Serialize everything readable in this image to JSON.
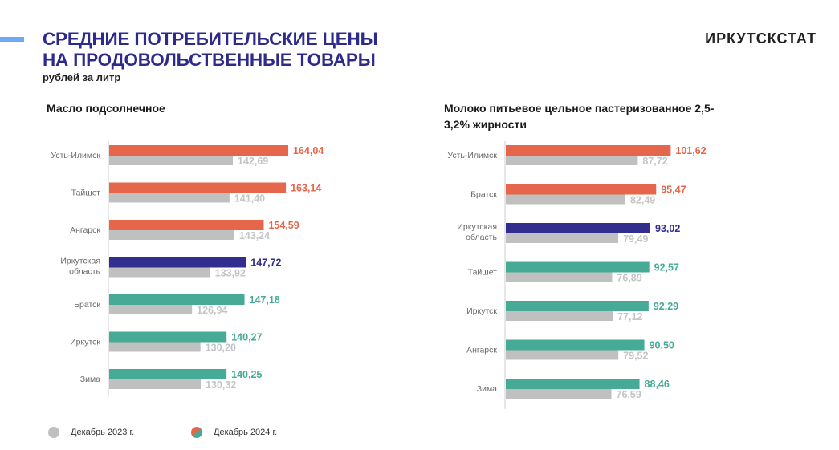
{
  "header": {
    "title_line1": "СРЕДНИЕ ПОТРЕБИТЕЛЬСКИЕ ЦЕНЫ",
    "title_line2": "НА ПРОДОВОЛЬСТВЕННЫЕ ТОВАРЫ",
    "subtitle": "рублей за литр",
    "brand": "ИРКУТСКСТАТ"
  },
  "colors": {
    "dec2023": "#c0c0c0",
    "above": "#e5664a",
    "region": "#332d8f",
    "below": "#46ab96"
  },
  "legend": {
    "dec2023": "Декабрь 2023 г.",
    "dec2024": "Декабрь 2024 г."
  },
  "chart_data": [
    {
      "type": "bar",
      "orientation": "horizontal",
      "title": "Масло подсолнечное",
      "xlabel": "",
      "ylabel": "",
      "xlim": [
        95,
        175
      ],
      "categories": [
        "Усть-Илимск",
        "Тайшет",
        "Ангарск",
        "Иркутская область",
        "Братск",
        "Иркутск",
        "Зима"
      ],
      "category_status": [
        "above",
        "above",
        "above",
        "region",
        "below",
        "below",
        "below"
      ],
      "series": [
        {
          "name": "Декабрь 2024 г.",
          "values": [
            164.04,
            163.14,
            154.59,
            147.72,
            147.18,
            140.27,
            140.25
          ],
          "labels": [
            "164,04",
            "163,14",
            "154,59",
            "147,72",
            "147,18",
            "140,27",
            "140,25"
          ]
        },
        {
          "name": "Декабрь 2023 г.",
          "values": [
            142.69,
            141.4,
            143.24,
            133.92,
            126.94,
            130.2,
            130.32
          ],
          "labels": [
            "142,69",
            "141,40",
            "143,24",
            "133,92",
            "126,94",
            "130,20",
            "130,32"
          ]
        }
      ],
      "legend": "bottom-left"
    },
    {
      "type": "bar",
      "orientation": "horizontal",
      "title": "Молоко питьевое цельное пастеризованное 2,5-3,2% жирности",
      "xlabel": "",
      "ylabel": "",
      "xlim": [
        32,
        110
      ],
      "categories": [
        "Усть-Илимск",
        "Братск",
        "Иркутская область",
        "Тайшет",
        "Иркутск",
        "Ангарск",
        "Зима"
      ],
      "category_status": [
        "above",
        "above",
        "region",
        "below",
        "below",
        "below",
        "below"
      ],
      "series": [
        {
          "name": "Декабрь 2024 г.",
          "values": [
            101.62,
            95.47,
            93.02,
            92.57,
            92.29,
            90.5,
            88.46
          ],
          "labels": [
            "101,62",
            "95,47",
            "93,02",
            "92,57",
            "92,29",
            "90,50",
            "88,46"
          ]
        },
        {
          "name": "Декабрь 2023 г.",
          "values": [
            87.72,
            82.49,
            79.49,
            76.89,
            77.12,
            79.52,
            76.59
          ],
          "labels": [
            "87,72",
            "82,49",
            "79,49",
            "76,89",
            "77,12",
            "79,52",
            "76,59"
          ]
        }
      ]
    }
  ]
}
